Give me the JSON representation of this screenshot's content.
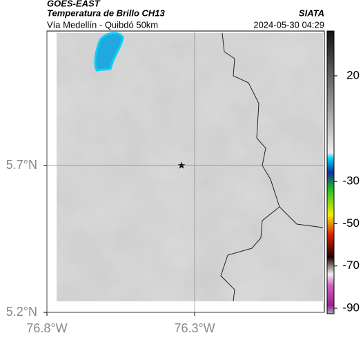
{
  "header": {
    "source": "GOES-EAST",
    "title": "Temperatura de Brillo CH13",
    "brand": "SIATA",
    "subtitle": "Vía Medellín - Quibdó 50km",
    "timestamp": "2024-05-30 04:29"
  },
  "map": {
    "xlim": [
      -76.8,
      -75.861
    ],
    "ylim": [
      5.2,
      6.158
    ],
    "xticks": [
      {
        "value": -76.8,
        "label": "76.8°W"
      },
      {
        "value": -76.3,
        "label": "76.3°W"
      }
    ],
    "yticks": [
      {
        "value": 5.2,
        "label": "5.2°N"
      },
      {
        "value": 5.7,
        "label": "5.7°N"
      }
    ]
  },
  "colorbar": {
    "lim": [
      -92.6,
      41.2
    ],
    "ticks": [
      20,
      -30,
      -50,
      -70,
      -90
    ]
  }
}
